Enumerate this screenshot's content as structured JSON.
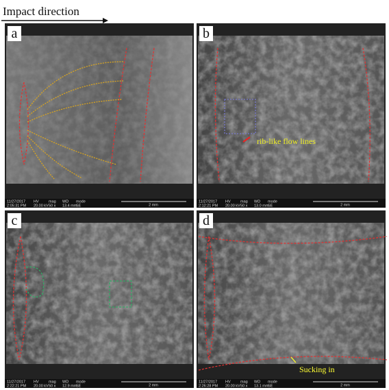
{
  "header": {
    "title": "Impact direction"
  },
  "panels": [
    {
      "label": "a",
      "info": {
        "date": "11/27/2017",
        "time": "2:05:31 PM",
        "headers": [
          "HV",
          "mag",
          "WD",
          "mode"
        ],
        "values": [
          "20.00 kV",
          "50 x",
          "13.4 mm",
          "SE"
        ],
        "scale": "2 mm"
      }
    },
    {
      "label": "b",
      "annotation": "rib-like flow lines",
      "info": {
        "date": "11/27/2017",
        "time": "2:12:21 PM",
        "headers": [
          "HV",
          "mag",
          "WD",
          "mode"
        ],
        "values": [
          "20.00 kV",
          "50 x",
          "13.0 mm",
          "SE"
        ],
        "scale": "2 mm"
      }
    },
    {
      "label": "c",
      "info": {
        "date": "11/27/2017",
        "time": "2:22:21 PM",
        "headers": [
          "HV",
          "mag",
          "WD",
          "mode"
        ],
        "values": [
          "20.00 kV",
          "50 x",
          "12.9 mm",
          "SE"
        ],
        "scale": "2 mm"
      }
    },
    {
      "label": "d",
      "annotation": "Sucking in",
      "info": {
        "date": "11/27/2017",
        "time": "2:26:28 PM",
        "headers": [
          "HV",
          "mag",
          "WD",
          "mode"
        ],
        "values": [
          "20.00 kV",
          "50 x",
          "13.1 mm",
          "SE"
        ],
        "scale": "2 mm"
      }
    }
  ]
}
